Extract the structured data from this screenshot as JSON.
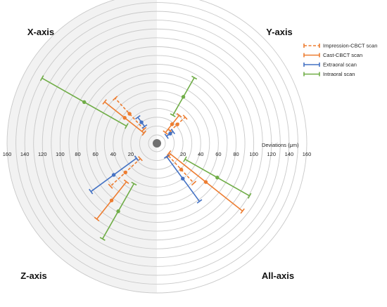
{
  "chart_data": {
    "type": "radial-errorbar",
    "title": "",
    "axis_title": "Deviations (μm)",
    "axis_range": [
      0,
      160
    ],
    "tick_step": 10,
    "tick_label_step": 20,
    "tick_labels": [
      "20",
      "40",
      "60",
      "80",
      "100",
      "120",
      "140",
      "160"
    ],
    "quadrants": [
      {
        "key": "x",
        "label": "X-axis",
        "position": "top-left",
        "angle_deg": 135
      },
      {
        "key": "y",
        "label": "Y-axis",
        "position": "top-right",
        "angle_deg": 45
      },
      {
        "key": "z",
        "label": "Z-axis",
        "position": "bottom-left",
        "angle_deg": 225
      },
      {
        "key": "all",
        "label": "All-axis",
        "position": "bottom-right",
        "angle_deg": 315
      }
    ],
    "legend_position": "top-right",
    "series": [
      {
        "name": "Impression-CBCT scan",
        "color": "#ED7D31",
        "dashed": true,
        "points": {
          "x": {
            "mean": 36,
            "lo": 12,
            "hi": 60
          },
          "y": {
            "mean": 22,
            "lo": 11,
            "hi": 34
          },
          "z": {
            "mean": 39,
            "lo": 16,
            "hi": 62
          },
          "all": {
            "mean": 31,
            "lo": 10,
            "hi": 52
          }
        }
      },
      {
        "name": "Cast-CBCT scan",
        "color": "#ED7D31",
        "dashed": false,
        "points": {
          "x": {
            "mean": 37,
            "lo": 9,
            "hi": 66
          },
          "y": {
            "mean": 18,
            "lo": 6,
            "hi": 31
          },
          "z": {
            "mean": 73,
            "lo": 46,
            "hi": 100
          },
          "all": {
            "mean": 61,
            "lo": 8,
            "hi": 114
          }
        }
      },
      {
        "name": "Extraoral scan",
        "color": "#4472C4",
        "dashed": false,
        "points": {
          "x": {
            "mean": 20,
            "lo": 14,
            "hi": 27
          },
          "y": {
            "mean": 9,
            "lo": 4,
            "hi": 13
          },
          "z": {
            "mean": 51,
            "lo": 19,
            "hi": 83
          },
          "all": {
            "mean": 40,
            "lo": 9,
            "hi": 72
          }
        }
      },
      {
        "name": "Intraoral scan",
        "color": "#70AD47",
        "dashed": false,
        "points": {
          "x": {
            "mean": 85,
            "lo": 30,
            "hi": 140
          },
          "y": {
            "mean": 51,
            "lo": 27,
            "hi": 76
          },
          "z": {
            "mean": 79,
            "lo": 43,
            "hi": 115
          },
          "all": {
            "mean": 69,
            "lo": 27,
            "hi": 111
          }
        }
      }
    ]
  }
}
